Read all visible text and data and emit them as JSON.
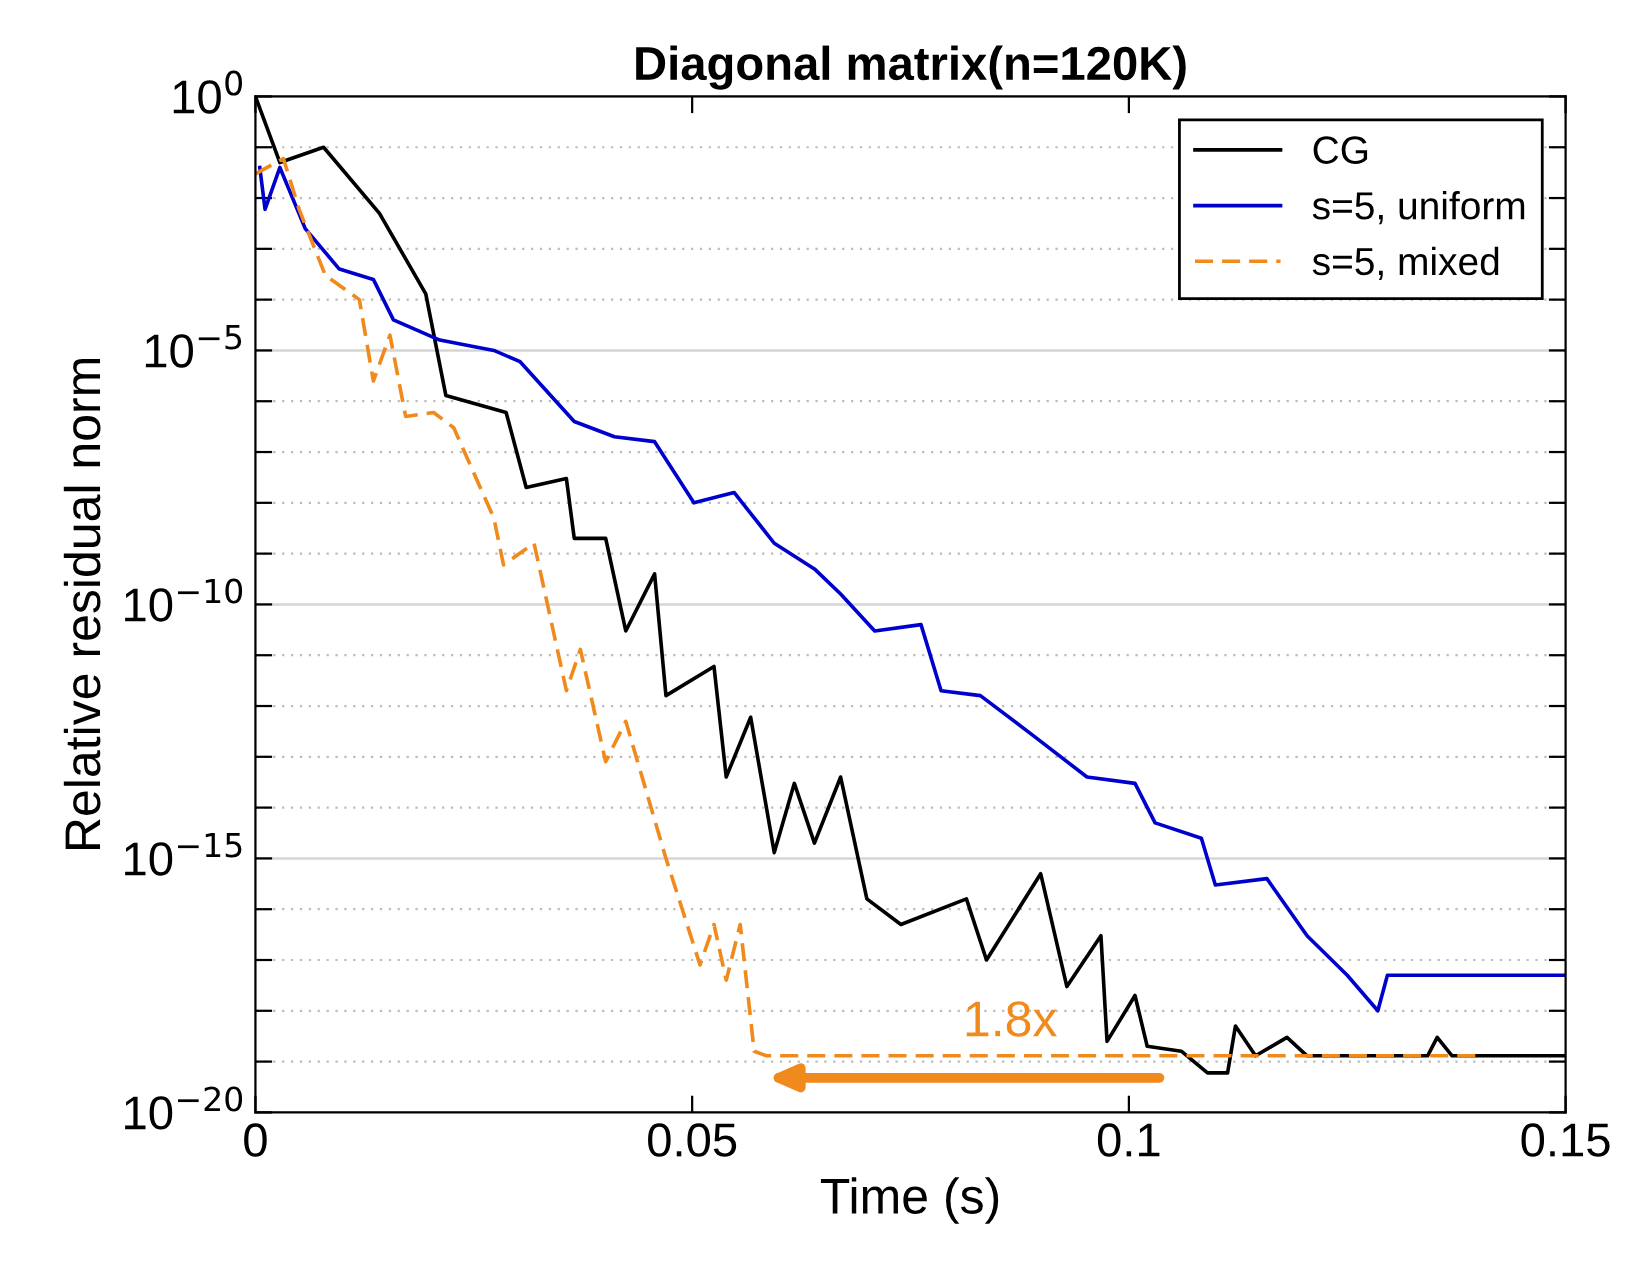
{
  "chart_data": {
    "type": "line",
    "title": "Diagonal matrix(n=120K)",
    "xlabel": "Time (s)",
    "ylabel": "Relative residual norm",
    "log": "y",
    "grid": "y",
    "legend": "top right",
    "xlim": [
      0,
      0.15
    ],
    "xticks": [
      0,
      0.05,
      0.1,
      0.15
    ],
    "ylim": [
      1e-20,
      1
    ],
    "yticks": [
      {
        "value": 1e-20,
        "label": "10$^{−20}$"
      },
      {
        "value": 1e-19,
        "label": null
      },
      {
        "value": 1e-18,
        "label": null
      },
      {
        "value": 1e-17,
        "label": null
      },
      {
        "value": 1e-16,
        "label": null
      },
      {
        "value": 1e-15,
        "label": "10$^{−15}$"
      },
      {
        "value": 1e-14,
        "label": null
      },
      {
        "value": 1e-13,
        "label": null
      },
      {
        "value": 1e-12,
        "label": null
      },
      {
        "value": 1e-11,
        "label": null
      },
      {
        "value": 1e-10,
        "label": "10$^{−10}$"
      },
      {
        "value": 1e-09,
        "label": null
      },
      {
        "value": 1e-08,
        "label": null
      },
      {
        "value": 1e-07,
        "label": null
      },
      {
        "value": 1e-06,
        "label": null
      },
      {
        "value": 1e-05,
        "label": "10$^{−5}$"
      },
      {
        "value": 0.0001,
        "label": null
      },
      {
        "value": 0.001,
        "label": null
      },
      {
        "value": 0.01,
        "label": null
      },
      {
        "value": 0.1,
        "label": null
      },
      {
        "value": 1,
        "label": "10$^{0}$"
      }
    ],
    "annotations": [
      "1.8x"
    ],
    "series": [
      {
        "name": "CG",
        "color": "#000000",
        "line_style": "solid",
        "x": [
          0,
          0.0028,
          0.0078,
          0.0142,
          0.0195,
          0.0218,
          0.0287,
          0.031,
          0.0356,
          0.0365,
          0.0401,
          0.0424,
          0.0457,
          0.047,
          0.0525,
          0.0539,
          0.0567,
          0.0594,
          0.0617,
          0.064,
          0.067,
          0.07,
          0.0739,
          0.0814,
          0.0837,
          0.0899,
          0.0929,
          0.0968,
          0.0975,
          0.1007,
          0.1021,
          0.106,
          0.109,
          0.1113,
          0.1122,
          0.1145,
          0.1181,
          0.1204,
          0.1342,
          0.1353,
          0.137,
          0.15
        ],
        "values": [
          1,
          0.05,
          0.1,
          0.005,
          0.00013,
          1.3e-06,
          6e-07,
          2e-08,
          3e-08,
          2e-09,
          2e-09,
          3e-11,
          4e-10,
          1.6e-12,
          6e-12,
          4e-14,
          6e-13,
          1.3e-15,
          3e-14,
          2e-15,
          4e-14,
          1.6e-16,
          5e-17,
          1.6e-16,
          1e-17,
          5e-16,
          3e-18,
          3e-17,
          2.5e-19,
          2e-18,
          2e-19,
          1.6e-19,
          6e-20,
          6e-20,
          5e-19,
          1.3e-19,
          3e-19,
          1.3e-19,
          1.3e-19,
          3e-19,
          1.3e-19,
          1.3e-19
        ]
      },
      {
        "name": "s=5, uniform",
        "color": "#0000cc",
        "line_style": "solid",
        "x": [
          0.0005,
          0.0011,
          0.0028,
          0.0057,
          0.0096,
          0.0135,
          0.0158,
          0.0211,
          0.0273,
          0.0303,
          0.0365,
          0.0411,
          0.0457,
          0.0502,
          0.0548,
          0.0594,
          0.064,
          0.067,
          0.0709,
          0.0762,
          0.0785,
          0.083,
          0.0892,
          0.0952,
          0.1007,
          0.103,
          0.1083,
          0.1099,
          0.1158,
          0.1204,
          0.125,
          0.1285,
          0.1296,
          0.15
        ],
        "values": [
          0.04,
          0.006,
          0.04,
          0.0025,
          0.0004,
          0.00025,
          4e-05,
          1.6e-05,
          1e-05,
          6e-06,
          4e-07,
          2e-07,
          1.6e-07,
          1e-08,
          1.6e-08,
          1.6e-09,
          5e-10,
          1.6e-10,
          3e-11,
          4e-11,
          2e-12,
          1.6e-12,
          2.5e-13,
          4e-14,
          3e-14,
          5e-15,
          2.5e-15,
          3e-16,
          4e-16,
          3e-17,
          5e-18,
          1e-18,
          5e-18,
          5e-18
        ]
      },
      {
        "name": "s=5, mixed",
        "color": "#f08a1c",
        "line_style": "dashed",
        "x": [
          0,
          0.0032,
          0.005,
          0.008,
          0.0119,
          0.0135,
          0.0154,
          0.0172,
          0.0204,
          0.0227,
          0.0273,
          0.0284,
          0.0319,
          0.0356,
          0.0372,
          0.0401,
          0.0424,
          0.047,
          0.0509,
          0.0525,
          0.0539,
          0.0555,
          0.0571,
          0.0585,
          0.14
        ],
        "values": [
          0.03,
          0.06,
          0.006,
          0.0003,
          0.0001,
          2.5e-06,
          2e-05,
          5e-07,
          6e-07,
          3e-07,
          5e-09,
          6e-10,
          1.6e-09,
          2e-12,
          1.3e-11,
          8e-14,
          5e-13,
          1e-15,
          8e-18,
          5e-17,
          4e-18,
          5e-17,
          1.6e-19,
          1.3e-19,
          1.3e-19
        ]
      }
    ]
  }
}
